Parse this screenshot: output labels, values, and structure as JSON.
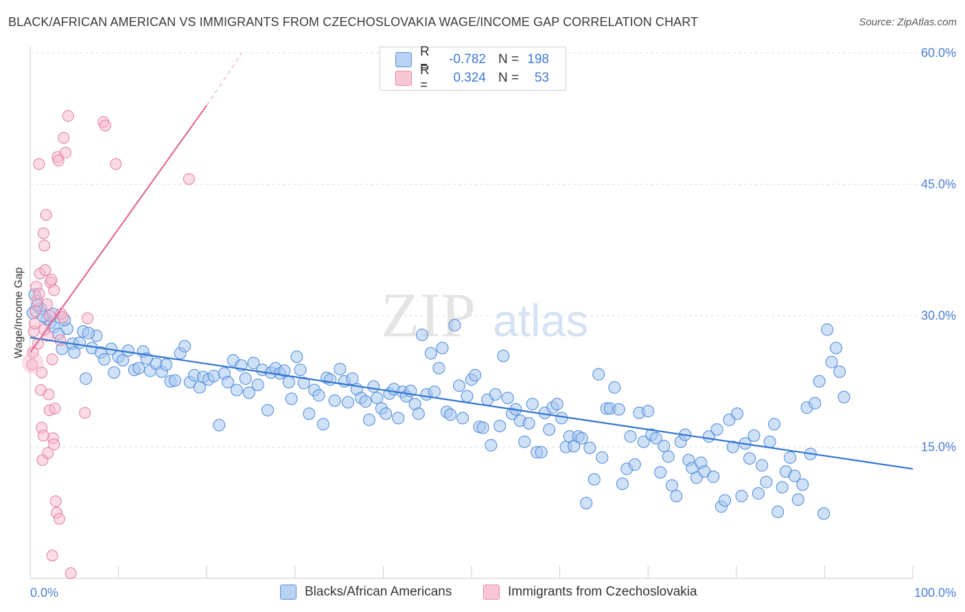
{
  "title": "BLACK/AFRICAN AMERICAN VS IMMIGRANTS FROM CZECHOSLOVAKIA WAGE/INCOME GAP CORRELATION CHART",
  "source": "Source: ZipAtlas.com",
  "watermark": {
    "zip": "ZIP",
    "atlas": "atlas"
  },
  "colors": {
    "blue_fill": "#a8c8f0",
    "blue_stroke": "#4a86d8",
    "blue_line": "#2f73d2",
    "pink_fill": "#f7b8cc",
    "pink_stroke": "#e07aa0",
    "pink_line": "#e06a94",
    "grid": "#dddddd",
    "tick_text": "#4a7fd4"
  },
  "legend_top": [
    {
      "r_label": "R =",
      "r_value": "-0.782",
      "n_label": "N =",
      "n_value": "198"
    },
    {
      "r_label": "R =",
      "r_value": "0.324",
      "n_label": "N =",
      "n_value": "53"
    }
  ],
  "chart_data": {
    "type": "scatter",
    "title": "BLACK/AFRICAN AMERICAN VS IMMIGRANTS FROM CZECHOSLOVAKIA WAGE/INCOME GAP CORRELATION CHART",
    "xlabel": "",
    "ylabel": "Wage/Income Gap",
    "xlim": [
      0,
      100
    ],
    "ylim": [
      0,
      60
    ],
    "x_tick_labels": [
      "0.0%",
      "100.0%"
    ],
    "y_ticks": [
      15,
      30,
      45,
      60
    ],
    "y_tick_labels": [
      "15.0%",
      "30.0%",
      "45.0%",
      "60.0%"
    ],
    "legend": [
      "Blacks/African Americans",
      "Immigrants from Czechoslovakia"
    ],
    "series": [
      {
        "name": "Blacks/African Americans",
        "points": [
          [
            0.3,
            30.3
          ],
          [
            0.5,
            32.4
          ],
          [
            1.2,
            30.8
          ],
          [
            1.9,
            29.6
          ],
          [
            2.3,
            29.2
          ],
          [
            2.7,
            28.7
          ],
          [
            3.2,
            27.9
          ],
          [
            3.6,
            26.2
          ],
          [
            4.2,
            28.5
          ],
          [
            4.8,
            26.8
          ],
          [
            5.0,
            25.8
          ],
          [
            5.6,
            26.9
          ],
          [
            6.0,
            28.2
          ],
          [
            6.3,
            22.8
          ],
          [
            7.0,
            26.3
          ],
          [
            7.5,
            27.7
          ],
          [
            8.0,
            25.8
          ],
          [
            8.4,
            25.0
          ],
          [
            9.2,
            26.2
          ],
          [
            9.5,
            23.5
          ],
          [
            10.0,
            25.3
          ],
          [
            10.5,
            24.9
          ],
          [
            11.1,
            26.0
          ],
          [
            11.8,
            23.8
          ],
          [
            12.3,
            24.0
          ],
          [
            12.8,
            25.9
          ],
          [
            13.2,
            25.1
          ],
          [
            13.6,
            23.7
          ],
          [
            14.3,
            24.5
          ],
          [
            14.9,
            23.6
          ],
          [
            15.4,
            24.4
          ],
          [
            15.9,
            22.5
          ],
          [
            16.4,
            22.6
          ],
          [
            17.0,
            25.7
          ],
          [
            17.5,
            26.5
          ],
          [
            18.1,
            22.4
          ],
          [
            18.6,
            23.2
          ],
          [
            19.2,
            21.8
          ],
          [
            19.6,
            23.0
          ],
          [
            20.2,
            22.7
          ],
          [
            20.8,
            23.1
          ],
          [
            21.4,
            17.5
          ],
          [
            22.0,
            23.4
          ],
          [
            22.4,
            22.4
          ],
          [
            23.0,
            24.9
          ],
          [
            23.4,
            21.5
          ],
          [
            23.9,
            24.3
          ],
          [
            24.4,
            22.8
          ],
          [
            24.8,
            21.2
          ],
          [
            25.3,
            24.6
          ],
          [
            25.8,
            22.1
          ],
          [
            26.3,
            23.8
          ],
          [
            26.9,
            19.2
          ],
          [
            27.3,
            23.5
          ],
          [
            27.8,
            24.0
          ],
          [
            28.3,
            23.4
          ],
          [
            28.8,
            23.7
          ],
          [
            29.3,
            22.4
          ],
          [
            29.6,
            20.5
          ],
          [
            30.2,
            25.3
          ],
          [
            30.6,
            23.8
          ],
          [
            31.0,
            22.3
          ],
          [
            31.6,
            18.8
          ],
          [
            32.2,
            21.5
          ],
          [
            32.7,
            20.9
          ],
          [
            33.2,
            17.6
          ],
          [
            33.6,
            22.9
          ],
          [
            34.0,
            22.7
          ],
          [
            34.5,
            20.3
          ],
          [
            35.1,
            23.9
          ],
          [
            35.6,
            22.5
          ],
          [
            36.0,
            20.1
          ],
          [
            36.5,
            22.8
          ],
          [
            37.0,
            21.6
          ],
          [
            37.5,
            20.6
          ],
          [
            38.0,
            20.2
          ],
          [
            38.4,
            18.1
          ],
          [
            38.9,
            21.9
          ],
          [
            39.3,
            20.6
          ],
          [
            39.8,
            19.4
          ],
          [
            40.3,
            18.8
          ],
          [
            40.7,
            21.1
          ],
          [
            41.2,
            21.6
          ],
          [
            41.7,
            18.3
          ],
          [
            42.2,
            21.3
          ],
          [
            42.6,
            20.8
          ],
          [
            43.1,
            21.4
          ],
          [
            43.6,
            19.9
          ],
          [
            44.0,
            18.8
          ],
          [
            44.4,
            27.8
          ],
          [
            44.9,
            21.0
          ],
          [
            45.4,
            25.7
          ],
          [
            45.8,
            21.3
          ],
          [
            46.3,
            24.0
          ],
          [
            46.7,
            26.3
          ],
          [
            47.2,
            19.0
          ],
          [
            47.6,
            18.7
          ],
          [
            48.1,
            28.9
          ],
          [
            48.6,
            22.0
          ],
          [
            49.0,
            18.3
          ],
          [
            49.5,
            20.8
          ],
          [
            50.0,
            22.7
          ],
          [
            50.4,
            23.2
          ],
          [
            50.9,
            17.3
          ],
          [
            51.3,
            17.2
          ],
          [
            51.8,
            20.4
          ],
          [
            52.2,
            15.2
          ],
          [
            52.7,
            21.0
          ],
          [
            53.2,
            17.4
          ],
          [
            53.6,
            25.4
          ],
          [
            54.1,
            20.6
          ],
          [
            54.6,
            18.8
          ],
          [
            55.0,
            19.3
          ],
          [
            55.5,
            18.0
          ],
          [
            56.0,
            15.6
          ],
          [
            56.5,
            17.7
          ],
          [
            56.9,
            19.9
          ],
          [
            57.4,
            14.4
          ],
          [
            57.9,
            14.4
          ],
          [
            58.3,
            18.9
          ],
          [
            58.8,
            17.0
          ],
          [
            59.2,
            19.5
          ],
          [
            59.7,
            19.9
          ],
          [
            60.2,
            18.3
          ],
          [
            60.7,
            15.0
          ],
          [
            61.1,
            16.2
          ],
          [
            61.6,
            15.1
          ],
          [
            62.1,
            16.2
          ],
          [
            62.5,
            16.0
          ],
          [
            63.0,
            8.6
          ],
          [
            63.4,
            14.9
          ],
          [
            63.9,
            11.3
          ],
          [
            64.4,
            23.3
          ],
          [
            64.8,
            13.8
          ],
          [
            65.3,
            19.4
          ],
          [
            65.7,
            19.4
          ],
          [
            66.2,
            21.8
          ],
          [
            66.7,
            19.3
          ],
          [
            67.1,
            10.8
          ],
          [
            67.6,
            12.5
          ],
          [
            68.0,
            16.2
          ],
          [
            68.5,
            13.0
          ],
          [
            69.0,
            18.9
          ],
          [
            69.5,
            15.6
          ],
          [
            70.0,
            19.1
          ],
          [
            70.4,
            16.4
          ],
          [
            70.9,
            16.0
          ],
          [
            71.4,
            12.1
          ],
          [
            71.8,
            15.1
          ],
          [
            72.3,
            13.9
          ],
          [
            72.7,
            10.6
          ],
          [
            73.2,
            9.4
          ],
          [
            73.7,
            15.6
          ],
          [
            74.2,
            16.4
          ],
          [
            74.6,
            13.5
          ],
          [
            75.0,
            12.6
          ],
          [
            75.5,
            11.5
          ],
          [
            76.0,
            13.2
          ],
          [
            76.4,
            12.2
          ],
          [
            76.9,
            16.2
          ],
          [
            77.4,
            11.6
          ],
          [
            77.8,
            17.0
          ],
          [
            78.3,
            8.2
          ],
          [
            78.7,
            8.9
          ],
          [
            79.2,
            18.1
          ],
          [
            79.6,
            15.0
          ],
          [
            80.1,
            18.8
          ],
          [
            80.6,
            9.4
          ],
          [
            81.0,
            15.4
          ],
          [
            81.5,
            13.7
          ],
          [
            82.0,
            16.3
          ],
          [
            82.5,
            9.7
          ],
          [
            82.9,
            12.9
          ],
          [
            83.4,
            11.0
          ],
          [
            83.8,
            15.6
          ],
          [
            84.3,
            17.6
          ],
          [
            84.7,
            7.6
          ],
          [
            85.2,
            10.4
          ],
          [
            85.6,
            12.2
          ],
          [
            86.1,
            13.8
          ],
          [
            86.6,
            11.7
          ],
          [
            87.0,
            9.0
          ],
          [
            87.5,
            10.7
          ],
          [
            88.0,
            19.5
          ],
          [
            88.4,
            14.2
          ],
          [
            88.9,
            20.0
          ],
          [
            89.4,
            22.5
          ],
          [
            89.9,
            7.4
          ],
          [
            90.3,
            28.4
          ],
          [
            90.8,
            24.7
          ],
          [
            91.3,
            26.3
          ],
          [
            91.7,
            23.6
          ],
          [
            92.2,
            20.7
          ],
          [
            0.8,
            31.2
          ],
          [
            1.5,
            29.9
          ],
          [
            3.9,
            29.5
          ],
          [
            2.6,
            30.2
          ],
          [
            6.6,
            28.0
          ]
        ]
      },
      {
        "name": "Immigrants from Czechoslovakia",
        "points": [
          [
            0.2,
            24.4
          ],
          [
            0.3,
            25.8
          ],
          [
            0.4,
            28.2
          ],
          [
            0.5,
            29.1
          ],
          [
            0.6,
            30.5
          ],
          [
            0.7,
            33.3
          ],
          [
            0.8,
            31.7
          ],
          [
            1.0,
            32.5
          ],
          [
            1.1,
            34.8
          ],
          [
            1.2,
            21.5
          ],
          [
            1.3,
            17.2
          ],
          [
            1.4,
            13.5
          ],
          [
            1.5,
            39.4
          ],
          [
            1.6,
            38.0
          ],
          [
            1.7,
            35.2
          ],
          [
            1.8,
            41.5
          ],
          [
            1.9,
            31.3
          ],
          [
            2.0,
            27.7
          ],
          [
            2.1,
            21.0
          ],
          [
            2.2,
            19.2
          ],
          [
            2.3,
            33.8
          ],
          [
            2.4,
            34.1
          ],
          [
            2.5,
            25.0
          ],
          [
            2.6,
            16.0
          ],
          [
            2.7,
            15.3
          ],
          [
            2.8,
            19.4
          ],
          [
            2.9,
            8.8
          ],
          [
            3.0,
            7.5
          ],
          [
            3.1,
            48.1
          ],
          [
            3.2,
            47.7
          ],
          [
            3.3,
            6.8
          ],
          [
            3.4,
            27.2
          ],
          [
            3.5,
            30.2
          ],
          [
            3.7,
            29.8
          ],
          [
            3.8,
            50.3
          ],
          [
            4.0,
            48.6
          ],
          [
            4.3,
            52.8
          ],
          [
            4.6,
            0.6
          ],
          [
            1.0,
            47.3
          ],
          [
            2.0,
            14.3
          ],
          [
            2.5,
            2.6
          ],
          [
            6.2,
            18.9
          ],
          [
            6.5,
            29.7
          ],
          [
            8.3,
            52.1
          ],
          [
            8.5,
            51.7
          ],
          [
            9.7,
            47.3
          ],
          [
            18.0,
            45.6
          ],
          [
            1.5,
            16.3
          ],
          [
            0.9,
            26.8
          ],
          [
            1.6,
            28.4
          ],
          [
            2.2,
            30.0
          ],
          [
            1.3,
            23.5
          ],
          [
            2.7,
            32.9
          ]
        ]
      }
    ],
    "trend_lines": [
      {
        "series": "Blacks/African Americans",
        "x": [
          0,
          100
        ],
        "y": [
          27.5,
          12.5
        ]
      },
      {
        "series": "Immigrants from Czechoslovakia",
        "x": [
          0,
          20
        ],
        "y": [
          25.8,
          54.0
        ],
        "dashed_extension_to": [
          24,
          60
        ]
      }
    ]
  }
}
